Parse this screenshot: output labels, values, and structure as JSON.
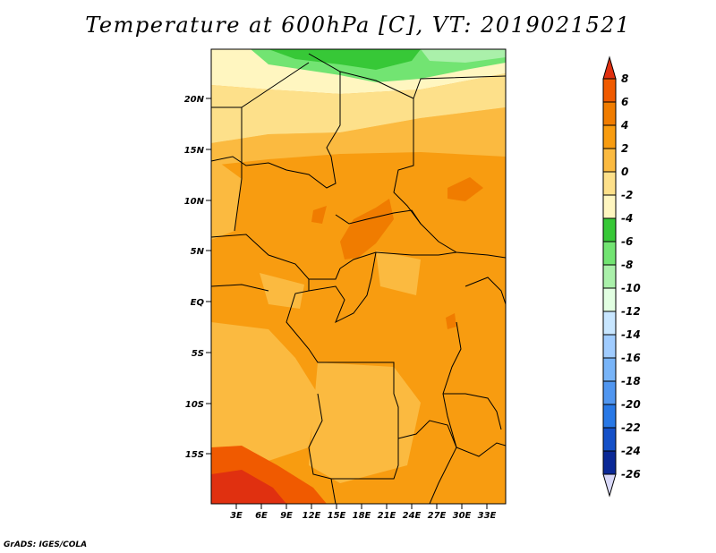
{
  "title": "Temperature at 600hPa [C], VT: 2019021521",
  "footer": "GrADS: IGES/COLA",
  "map": {
    "lat_labels": [
      "20N",
      "15N",
      "10N",
      "5N",
      "EQ",
      "5S",
      "10S",
      "15S"
    ],
    "lon_labels": [
      "3E",
      "6E",
      "9E",
      "12E",
      "15E",
      "18E",
      "21E",
      "24E",
      "27E",
      "30E",
      "33E"
    ]
  },
  "colorbar": {
    "labels": [
      "8",
      "6",
      "4",
      "2",
      "0",
      "-2",
      "-4",
      "-6",
      "-8",
      "-10",
      "-12",
      "-14",
      "-16",
      "-18",
      "-20",
      "-22",
      "-24",
      "-26"
    ],
    "colors": [
      "#e03010",
      "#f05a00",
      "#f07c00",
      "#f89c10",
      "#fbba40",
      "#fde08a",
      "#fff6c0",
      "#37c837",
      "#72e472",
      "#aaf0aa",
      "#e2ffe2",
      "#c8e6ff",
      "#a0ccff",
      "#78b4f8",
      "#5096f0",
      "#2878e6",
      "#1450c8",
      "#0a2896",
      "#050a60",
      "#d8d8f8"
    ]
  }
}
